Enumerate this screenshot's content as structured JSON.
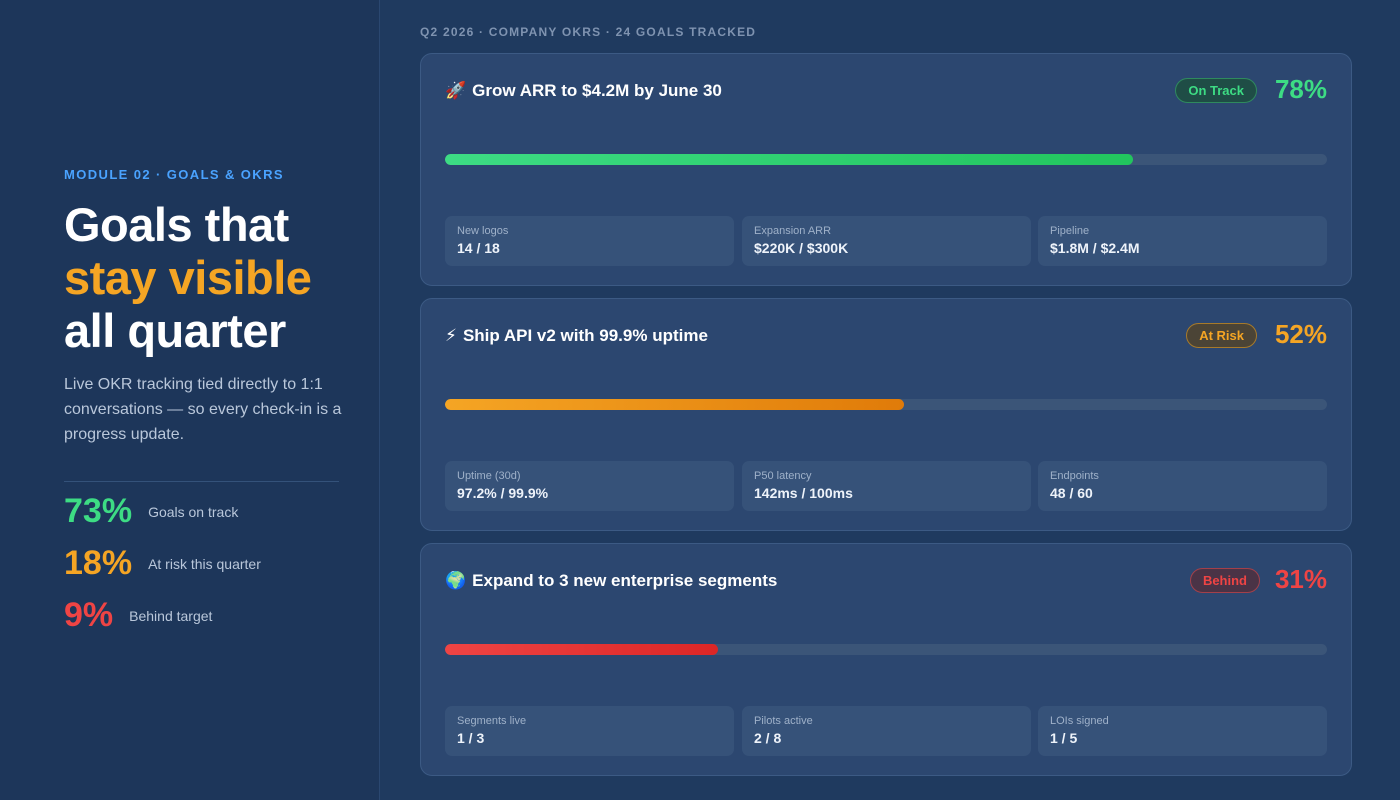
{
  "left": {
    "module_tag": "MODULE 02 · GOALS & OKRS",
    "headline": {
      "line1": "Goals that",
      "line2": "stay visible",
      "line3": "all quarter"
    },
    "lede": "Live OKR tracking tied directly to 1:1 conversations — so every check-in is a progress update.",
    "stats": [
      {
        "value": "73%",
        "label": "Goals on track"
      },
      {
        "value": "18%",
        "label": "At risk this quarter"
      },
      {
        "value": "9%",
        "label": "Behind target"
      }
    ]
  },
  "right": {
    "crumb": "Q2 2026 · COMPANY OKRS · 24 GOALS TRACKED",
    "goals": [
      {
        "icon": "🚀",
        "icon_name": "rocket-icon",
        "title": "Grow ARR to $4.2M by June 30",
        "status": "On Track",
        "percent": "78%",
        "progress": 0.78,
        "color": "#3ddc84",
        "metrics": [
          {
            "label": "New logos",
            "value": "14 / 18"
          },
          {
            "label": "Expansion ARR",
            "value": "$220K / $300K"
          },
          {
            "label": "Pipeline",
            "value": "$1.8M / $2.4M"
          }
        ]
      },
      {
        "icon": "⚡",
        "icon_name": "lightning-icon",
        "title": "Ship API v2 with 99.9% uptime",
        "status": "At Risk",
        "percent": "52%",
        "progress": 0.52,
        "color": "#f5a524",
        "metrics": [
          {
            "label": "Uptime (30d)",
            "value": "97.2% / 99.9%"
          },
          {
            "label": "P50 latency",
            "value": "142ms / 100ms"
          },
          {
            "label": "Endpoints",
            "value": "48 / 60"
          }
        ]
      },
      {
        "icon": "🌍",
        "icon_name": "globe-icon",
        "title": "Expand to 3 new enterprise segments",
        "status": "Behind",
        "percent": "31%",
        "progress": 0.31,
        "color": "#ef4444",
        "metrics": [
          {
            "label": "Segments live",
            "value": "1 / 3"
          },
          {
            "label": "Pilots active",
            "value": "2 / 8"
          },
          {
            "label": "LOIs signed",
            "value": "1 / 5"
          }
        ]
      }
    ]
  }
}
